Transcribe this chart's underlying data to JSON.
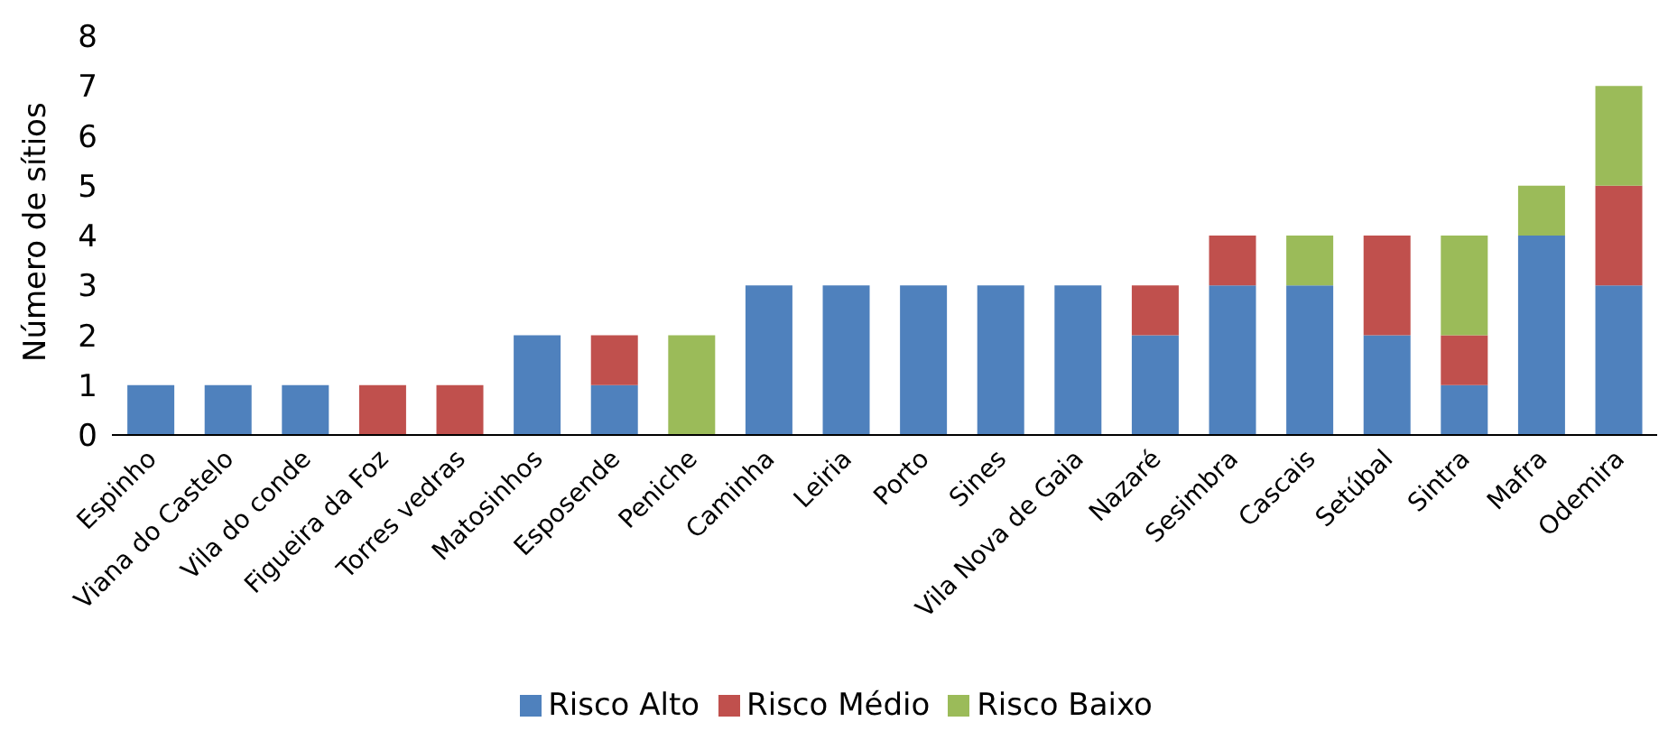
{
  "chart_data": {
    "type": "bar",
    "stacked": true,
    "ylabel": "Número de sítios",
    "categories": [
      "Espinho",
      "Viana do Castelo",
      "Vila do conde",
      "Figueira da Foz",
      "Torres vedras",
      "Matosinhos",
      "Esposende",
      "Peniche",
      "Caminha",
      "Leiria",
      "Porto",
      "Sines",
      "Vila Nova de Gaia",
      "Nazaré",
      "Sesimbra",
      "Cascais",
      "Setúbal",
      "Sintra",
      "Mafra",
      "Odemira"
    ],
    "series": [
      {
        "name": "Risco Alto",
        "color": "#4f81bd",
        "values": [
          1,
          1,
          1,
          0,
          0,
          2,
          1,
          0,
          3,
          3,
          3,
          3,
          3,
          2,
          3,
          3,
          2,
          1,
          4,
          3
        ]
      },
      {
        "name": "Risco Médio",
        "color": "#c0504d",
        "values": [
          0,
          0,
          0,
          1,
          1,
          0,
          1,
          0,
          0,
          0,
          0,
          0,
          0,
          1,
          1,
          0,
          2,
          1,
          0,
          2
        ]
      },
      {
        "name": "Risco Baixo",
        "color": "#9bbb59",
        "values": [
          0,
          0,
          0,
          0,
          0,
          0,
          0,
          2,
          0,
          0,
          0,
          0,
          0,
          0,
          0,
          1,
          0,
          2,
          1,
          2
        ]
      }
    ],
    "ylim": [
      0,
      8
    ],
    "yticks": [
      0,
      1,
      2,
      3,
      4,
      5,
      6,
      7,
      8
    ],
    "grid": false,
    "legend": "bottom"
  }
}
